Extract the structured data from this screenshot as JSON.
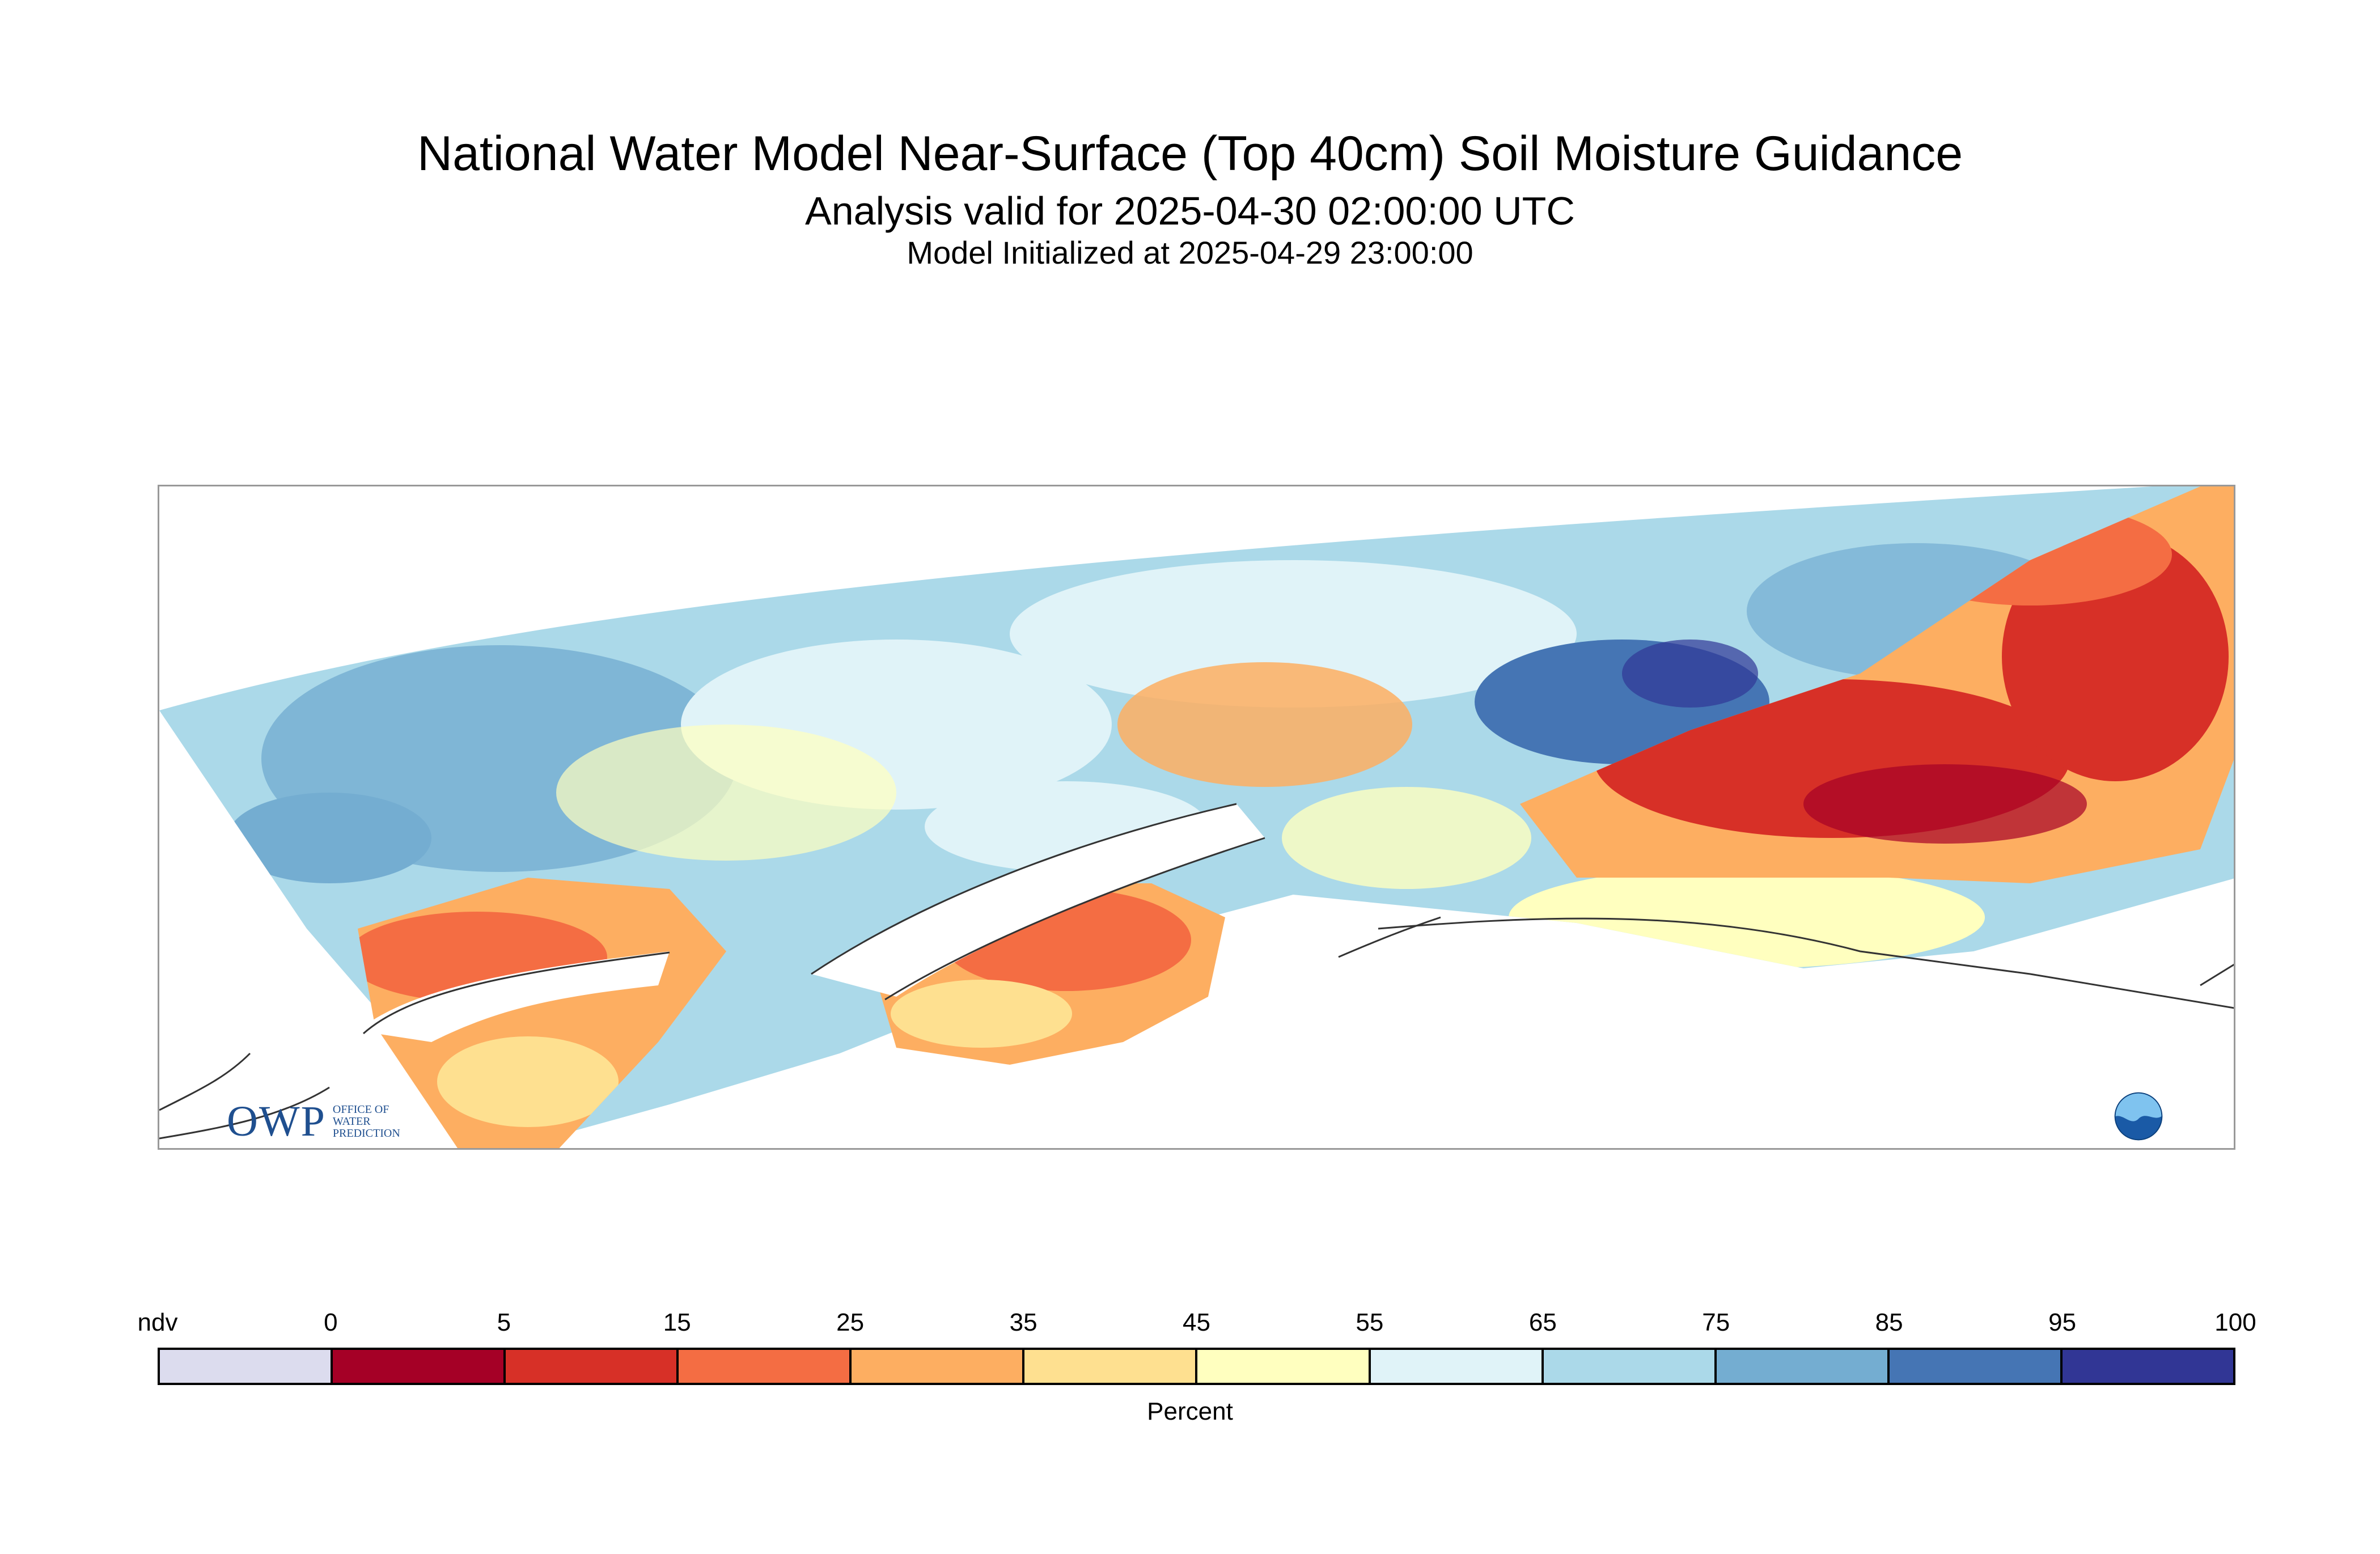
{
  "header": {
    "title": "National Water Model Near-Surface (Top 40cm) Soil Moisture Guidance",
    "valid": "Analysis valid for 2025-04-30 02:00:00 UTC",
    "init": "Model Initialized at 2025-04-29 23:00:00"
  },
  "logos": {
    "owp_letters": "OWP",
    "owp_text": [
      "OFFICE OF",
      "WATER",
      "PREDICTION"
    ]
  },
  "legend": {
    "label": "Percent",
    "ticks": [
      "ndv",
      "0",
      "5",
      "15",
      "25",
      "35",
      "45",
      "55",
      "65",
      "75",
      "85",
      "95",
      "100"
    ],
    "colors": [
      "#dcdcee",
      "#a50026",
      "#d73027",
      "#f46d43",
      "#fdae61",
      "#fee090",
      "#ffffbf",
      "#e0f3f8",
      "#abd9e9",
      "#74add1",
      "#4575b4",
      "#313695"
    ]
  }
}
